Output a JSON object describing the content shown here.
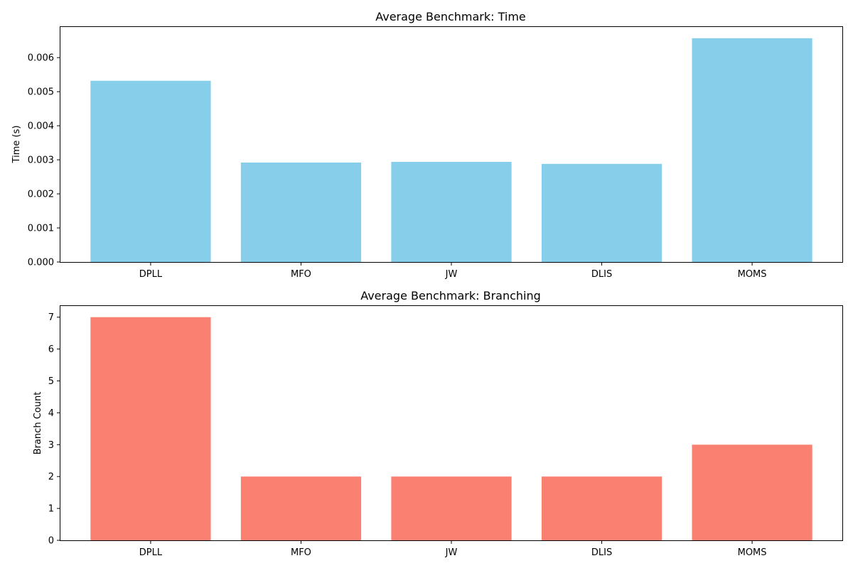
{
  "chart_data": [
    {
      "id": "time",
      "type": "bar",
      "title": "Average Benchmark: Time",
      "xlabel": "",
      "ylabel": "Time (s)",
      "categories": [
        "DPLL",
        "MFO",
        "JW",
        "DLIS",
        "MOMS"
      ],
      "values": [
        0.00532,
        0.00292,
        0.00294,
        0.00288,
        0.00657
      ],
      "ylim": [
        0,
        0.0069
      ],
      "yticks": [
        0,
        0.001,
        0.002,
        0.003,
        0.004,
        0.005,
        0.006
      ],
      "ytick_labels": [
        "0.000",
        "0.001",
        "0.002",
        "0.003",
        "0.004",
        "0.005",
        "0.006"
      ],
      "color": "#87CEEB",
      "grid": false,
      "legend": "none"
    },
    {
      "id": "branching",
      "type": "bar",
      "title": "Average Benchmark: Branching",
      "xlabel": "",
      "ylabel": "Branch Count",
      "categories": [
        "DPLL",
        "MFO",
        "JW",
        "DLIS",
        "MOMS"
      ],
      "values": [
        7,
        2,
        2,
        2,
        3
      ],
      "ylim": [
        0,
        7.35
      ],
      "yticks": [
        0,
        1,
        2,
        3,
        4,
        5,
        6,
        7
      ],
      "ytick_labels": [
        "0",
        "1",
        "2",
        "3",
        "4",
        "5",
        "6",
        "7"
      ],
      "color": "#FA8072",
      "grid": false,
      "legend": "none"
    }
  ]
}
